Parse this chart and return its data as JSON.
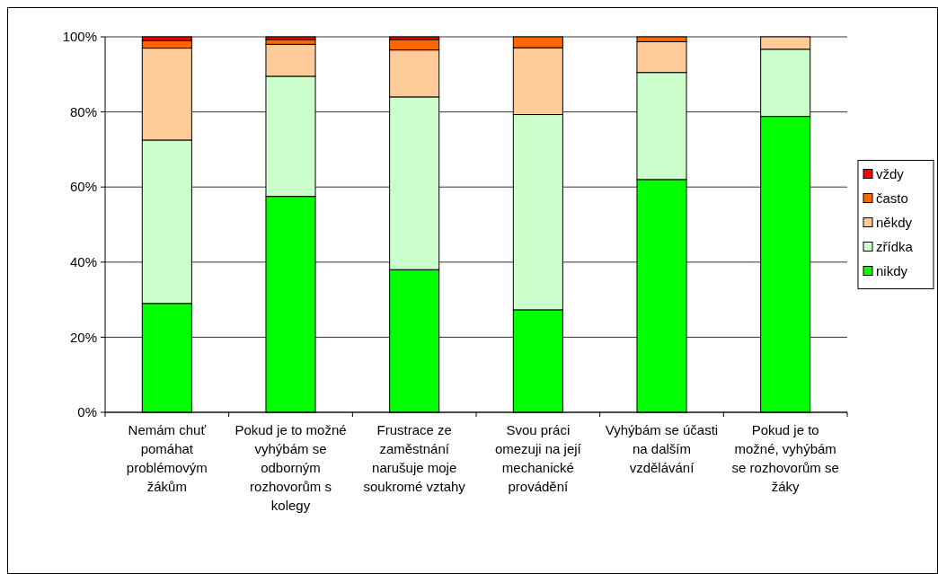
{
  "chart_data": {
    "type": "bar",
    "stacked": true,
    "categories": [
      "Nemám chuť pomáhat problémovým žákům",
      "Pokud je to možné vyhýbám se odborným rozhovorům s kolegy",
      "Frustrace ze zaměstnání narušuje moje soukromé vztahy",
      "Svou práci omezuji na její mechanické provádění",
      "Vyhýbám se účasti na dalším vzdělávání",
      "Pokud je to možné, vyhýbám se rozhovorům se žáky"
    ],
    "series": [
      {
        "name": "nikdy",
        "color": "#00ff00",
        "values": [
          29,
          57.5,
          38,
          27.3,
          62,
          78.8
        ]
      },
      {
        "name": "zřídka",
        "color": "#ccffcc",
        "values": [
          43.5,
          32,
          46,
          52,
          28.5,
          17.9
        ]
      },
      {
        "name": "někdy",
        "color": "#ffcc99",
        "values": [
          24.5,
          8.5,
          12.5,
          17.8,
          8.2,
          3.3
        ]
      },
      {
        "name": "často",
        "color": "#ff6600",
        "values": [
          2,
          1.3,
          2.8,
          2.9,
          1.3,
          0
        ]
      },
      {
        "name": "vždy",
        "color": "#ff0000",
        "values": [
          1,
          0.7,
          0.7,
          0,
          0,
          0
        ]
      }
    ],
    "ylim": [
      0,
      100
    ],
    "yticks": [
      {
        "value": 0,
        "label": "0%"
      },
      {
        "value": 20,
        "label": "20%"
      },
      {
        "value": 40,
        "label": "40%"
      },
      {
        "value": 60,
        "label": "60%"
      },
      {
        "value": 80,
        "label": "80%"
      },
      {
        "value": 100,
        "label": "100%"
      }
    ],
    "grid": "y",
    "legend": "right"
  }
}
